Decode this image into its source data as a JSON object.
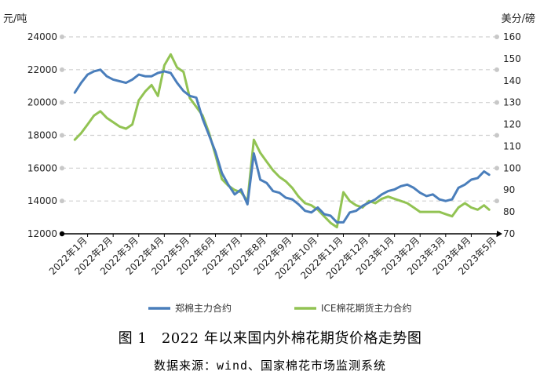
{
  "figure": {
    "title": "图 1　2022 年以来国内外棉花期货价格走势图",
    "source": "数据来源：wind、国家棉花市场监测系统"
  },
  "chart_data": {
    "type": "line",
    "left_unit": "元/吨",
    "right_unit": "美分/磅",
    "left_axis": {
      "min": 12000,
      "max": 24000,
      "ticks": [
        "12000",
        "14000",
        "16000",
        "18000",
        "20000",
        "22000",
        "24000"
      ]
    },
    "right_axis": {
      "min": 70,
      "max": 160,
      "ticks": [
        "70",
        "80",
        "90",
        "100",
        "110",
        "120",
        "130",
        "140",
        "150",
        "160"
      ]
    },
    "grid": true,
    "legend_position": "bottom",
    "x_labels": [
      "2022年1月",
      "2022年2月",
      "2022年3月",
      "2022年4月",
      "2022年5月",
      "2022年6月",
      "2022年7月",
      "2022年8月",
      "2022年9月",
      "2022年10月",
      "2022年11月",
      "2022年12月",
      "2023年1月",
      "2023年2月",
      "2023年3月",
      "2023年4月",
      "2023年5月"
    ],
    "series": [
      {
        "name": "郑棉主力合约",
        "axis": "left",
        "color": "#4a7ebb",
        "x": [
          0,
          0.25,
          0.5,
          0.75,
          1,
          1.25,
          1.5,
          1.75,
          2,
          2.25,
          2.5,
          2.75,
          3,
          3.25,
          3.5,
          3.75,
          4,
          4.25,
          4.5,
          4.75,
          5,
          5.25,
          5.5,
          5.75,
          6,
          6.25,
          6.5,
          6.75,
          7,
          7.25,
          7.5,
          7.75,
          8,
          8.25,
          8.5,
          8.75,
          9,
          9.25,
          9.5,
          9.75,
          10,
          10.25,
          10.5,
          10.75,
          11,
          11.25,
          11.5,
          11.75,
          12,
          12.25,
          12.5,
          12.75,
          13,
          13.25,
          13.5,
          13.75,
          14,
          14.25,
          14.5,
          14.75,
          15,
          15.25,
          15.5,
          15.75,
          16,
          16.2
        ],
        "y": [
          20600,
          21200,
          21700,
          21900,
          22000,
          21600,
          21400,
          21300,
          21200,
          21400,
          21700,
          21600,
          21600,
          21800,
          21900,
          21800,
          21200,
          20700,
          20400,
          20300,
          19000,
          18000,
          17000,
          15700,
          15000,
          14400,
          14700,
          13800,
          16900,
          15300,
          15100,
          14600,
          14500,
          14200,
          14100,
          13800,
          13400,
          13300,
          13600,
          13200,
          13100,
          12700,
          12700,
          13300,
          13400,
          13700,
          13900,
          14100,
          14400,
          14600,
          14700,
          14900,
          15000,
          14800,
          14500,
          14300,
          14400,
          14100,
          14000,
          14100,
          14800,
          15000,
          15300,
          15400,
          15800,
          15600
        ]
      },
      {
        "name": "ICE棉花期货主力合约",
        "axis": "right",
        "color": "#92c353",
        "x": [
          0,
          0.25,
          0.5,
          0.75,
          1,
          1.25,
          1.5,
          1.75,
          2,
          2.25,
          2.5,
          2.75,
          3,
          3.25,
          3.5,
          3.75,
          4,
          4.25,
          4.5,
          4.75,
          5,
          5.25,
          5.5,
          5.75,
          6,
          6.25,
          6.5,
          6.75,
          7,
          7.25,
          7.5,
          7.75,
          8,
          8.25,
          8.5,
          8.75,
          9,
          9.25,
          9.5,
          9.75,
          10,
          10.25,
          10.5,
          10.75,
          11,
          11.25,
          11.5,
          11.75,
          12,
          12.25,
          12.5,
          12.75,
          13,
          13.25,
          13.5,
          13.75,
          14,
          14.25,
          14.5,
          14.75,
          15,
          15.25,
          15.5,
          15.75,
          16,
          16.2
        ],
        "y": [
          113,
          116,
          120,
          124,
          126,
          123,
          121,
          119,
          118,
          120,
          131,
          135,
          138,
          133,
          147,
          152,
          146,
          144,
          132,
          128,
          124,
          116,
          106,
          95,
          92,
          90,
          89,
          85,
          113,
          107,
          103,
          99,
          96,
          94,
          91,
          87,
          84,
          83,
          81,
          78,
          75,
          73,
          89,
          85,
          83,
          82,
          85,
          84,
          86,
          87,
          86,
          85,
          84,
          82,
          80,
          80,
          80,
          80,
          79,
          78,
          82,
          84,
          82,
          81,
          83,
          81
        ]
      }
    ]
  }
}
